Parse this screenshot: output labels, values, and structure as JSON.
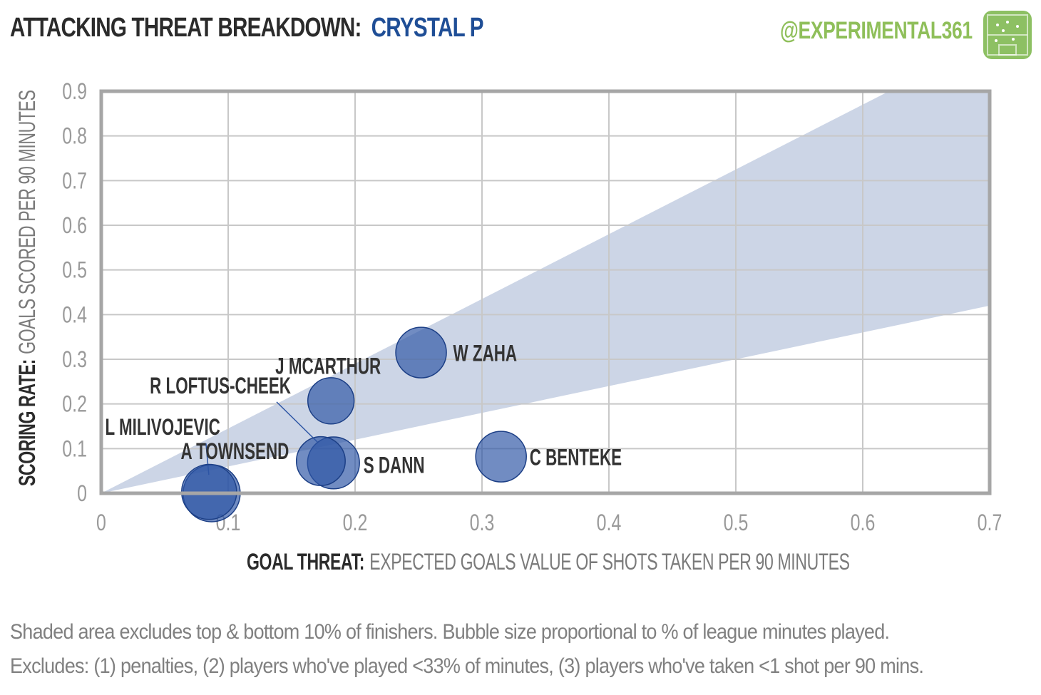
{
  "header": {
    "title": "ATTACKING THREAT BREAKDOWN:",
    "team": "CRYSTAL P",
    "handle": "@EXPERIMENTAL361"
  },
  "axes": {
    "x_bold": "GOAL THREAT:",
    "x_rest": "EXPECTED GOALS VALUE OF SHOTS TAKEN PER 90 MINUTES",
    "y_bold": "SCORING RATE:",
    "y_rest": "GOALS SCORED PER 90 MINUTES"
  },
  "footnotes": [
    "Shaded area excludes top & bottom 10% of finishers. Bubble size proportional to % of league minutes played.",
    "Excludes: (1) penalties, (2) players who've played <33% of minutes, (3) players who've taken <1 shot per 90 mins."
  ],
  "colors": {
    "bubble": "#2e56a5",
    "band": "#ccd5e6",
    "handle": "#8fbf5a",
    "team": "#1f4e96",
    "grid": "#c8c8c8",
    "frame": "#a6a6a6"
  },
  "chart_data": {
    "type": "scatter",
    "xlim": [
      0,
      0.7
    ],
    "ylim": [
      0,
      0.9
    ],
    "x_ticks": [
      "0",
      "0.1",
      "0.2",
      "0.3",
      "0.4",
      "0.5",
      "0.6",
      "0.7"
    ],
    "y_ticks": [
      "0",
      "0.1",
      "0.2",
      "0.3",
      "0.4",
      "0.5",
      "0.6",
      "0.7",
      "0.8",
      "0.9"
    ],
    "grid": true,
    "band": {
      "lower_slope": 0.6,
      "upper_slope": 1.45
    },
    "points": [
      {
        "name": "W ZAHA",
        "x": 0.252,
        "y": 0.315,
        "size": 0.75
      },
      {
        "name": "J MCARTHUR",
        "x": 0.181,
        "y": 0.207,
        "size": 0.58
      },
      {
        "name": "R LOFTUS-CHEEK",
        "x": 0.173,
        "y": 0.072,
        "size": 0.68
      },
      {
        "name": "S DANN",
        "x": 0.183,
        "y": 0.068,
        "size": 0.8
      },
      {
        "name": "C BENTEKE",
        "x": 0.315,
        "y": 0.082,
        "size": 0.75
      },
      {
        "name": "L MILIVOJEVIC",
        "x": 0.087,
        "y": 0.0,
        "size": 1.0
      },
      {
        "name": "A TOWNSEND",
        "x": 0.085,
        "y": 0.003,
        "size": 0.92
      }
    ]
  }
}
